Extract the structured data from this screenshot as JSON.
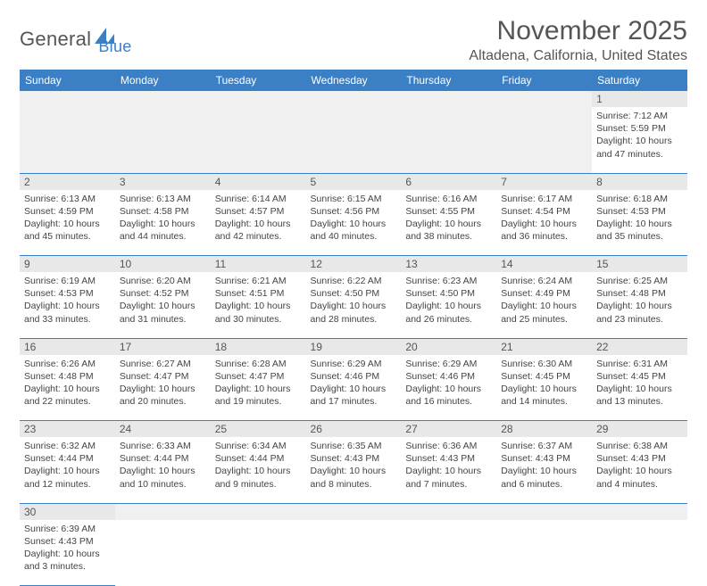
{
  "logo": {
    "word1": "General",
    "word2": "Blue"
  },
  "title": "November 2025",
  "location": "Altadena, California, United States",
  "header_bg": "#3b7fc4",
  "daynames": [
    "Sunday",
    "Monday",
    "Tuesday",
    "Wednesday",
    "Thursday",
    "Friday",
    "Saturday"
  ],
  "weeks": [
    {
      "nums": [
        "",
        "",
        "",
        "",
        "",
        "",
        "1"
      ],
      "cells": [
        null,
        null,
        null,
        null,
        null,
        null,
        {
          "sunrise": "Sunrise: 7:12 AM",
          "sunset": "Sunset: 5:59 PM",
          "day1": "Daylight: 10 hours",
          "day2": "and 47 minutes."
        }
      ]
    },
    {
      "nums": [
        "2",
        "3",
        "4",
        "5",
        "6",
        "7",
        "8"
      ],
      "cells": [
        {
          "sunrise": "Sunrise: 6:13 AM",
          "sunset": "Sunset: 4:59 PM",
          "day1": "Daylight: 10 hours",
          "day2": "and 45 minutes."
        },
        {
          "sunrise": "Sunrise: 6:13 AM",
          "sunset": "Sunset: 4:58 PM",
          "day1": "Daylight: 10 hours",
          "day2": "and 44 minutes."
        },
        {
          "sunrise": "Sunrise: 6:14 AM",
          "sunset": "Sunset: 4:57 PM",
          "day1": "Daylight: 10 hours",
          "day2": "and 42 minutes."
        },
        {
          "sunrise": "Sunrise: 6:15 AM",
          "sunset": "Sunset: 4:56 PM",
          "day1": "Daylight: 10 hours",
          "day2": "and 40 minutes."
        },
        {
          "sunrise": "Sunrise: 6:16 AM",
          "sunset": "Sunset: 4:55 PM",
          "day1": "Daylight: 10 hours",
          "day2": "and 38 minutes."
        },
        {
          "sunrise": "Sunrise: 6:17 AM",
          "sunset": "Sunset: 4:54 PM",
          "day1": "Daylight: 10 hours",
          "day2": "and 36 minutes."
        },
        {
          "sunrise": "Sunrise: 6:18 AM",
          "sunset": "Sunset: 4:53 PM",
          "day1": "Daylight: 10 hours",
          "day2": "and 35 minutes."
        }
      ]
    },
    {
      "nums": [
        "9",
        "10",
        "11",
        "12",
        "13",
        "14",
        "15"
      ],
      "cells": [
        {
          "sunrise": "Sunrise: 6:19 AM",
          "sunset": "Sunset: 4:53 PM",
          "day1": "Daylight: 10 hours",
          "day2": "and 33 minutes."
        },
        {
          "sunrise": "Sunrise: 6:20 AM",
          "sunset": "Sunset: 4:52 PM",
          "day1": "Daylight: 10 hours",
          "day2": "and 31 minutes."
        },
        {
          "sunrise": "Sunrise: 6:21 AM",
          "sunset": "Sunset: 4:51 PM",
          "day1": "Daylight: 10 hours",
          "day2": "and 30 minutes."
        },
        {
          "sunrise": "Sunrise: 6:22 AM",
          "sunset": "Sunset: 4:50 PM",
          "day1": "Daylight: 10 hours",
          "day2": "and 28 minutes."
        },
        {
          "sunrise": "Sunrise: 6:23 AM",
          "sunset": "Sunset: 4:50 PM",
          "day1": "Daylight: 10 hours",
          "day2": "and 26 minutes."
        },
        {
          "sunrise": "Sunrise: 6:24 AM",
          "sunset": "Sunset: 4:49 PM",
          "day1": "Daylight: 10 hours",
          "day2": "and 25 minutes."
        },
        {
          "sunrise": "Sunrise: 6:25 AM",
          "sunset": "Sunset: 4:48 PM",
          "day1": "Daylight: 10 hours",
          "day2": "and 23 minutes."
        }
      ]
    },
    {
      "nums": [
        "16",
        "17",
        "18",
        "19",
        "20",
        "21",
        "22"
      ],
      "cells": [
        {
          "sunrise": "Sunrise: 6:26 AM",
          "sunset": "Sunset: 4:48 PM",
          "day1": "Daylight: 10 hours",
          "day2": "and 22 minutes."
        },
        {
          "sunrise": "Sunrise: 6:27 AM",
          "sunset": "Sunset: 4:47 PM",
          "day1": "Daylight: 10 hours",
          "day2": "and 20 minutes."
        },
        {
          "sunrise": "Sunrise: 6:28 AM",
          "sunset": "Sunset: 4:47 PM",
          "day1": "Daylight: 10 hours",
          "day2": "and 19 minutes."
        },
        {
          "sunrise": "Sunrise: 6:29 AM",
          "sunset": "Sunset: 4:46 PM",
          "day1": "Daylight: 10 hours",
          "day2": "and 17 minutes."
        },
        {
          "sunrise": "Sunrise: 6:29 AM",
          "sunset": "Sunset: 4:46 PM",
          "day1": "Daylight: 10 hours",
          "day2": "and 16 minutes."
        },
        {
          "sunrise": "Sunrise: 6:30 AM",
          "sunset": "Sunset: 4:45 PM",
          "day1": "Daylight: 10 hours",
          "day2": "and 14 minutes."
        },
        {
          "sunrise": "Sunrise: 6:31 AM",
          "sunset": "Sunset: 4:45 PM",
          "day1": "Daylight: 10 hours",
          "day2": "and 13 minutes."
        }
      ]
    },
    {
      "nums": [
        "23",
        "24",
        "25",
        "26",
        "27",
        "28",
        "29"
      ],
      "cells": [
        {
          "sunrise": "Sunrise: 6:32 AM",
          "sunset": "Sunset: 4:44 PM",
          "day1": "Daylight: 10 hours",
          "day2": "and 12 minutes."
        },
        {
          "sunrise": "Sunrise: 6:33 AM",
          "sunset": "Sunset: 4:44 PM",
          "day1": "Daylight: 10 hours",
          "day2": "and 10 minutes."
        },
        {
          "sunrise": "Sunrise: 6:34 AM",
          "sunset": "Sunset: 4:44 PM",
          "day1": "Daylight: 10 hours",
          "day2": "and 9 minutes."
        },
        {
          "sunrise": "Sunrise: 6:35 AM",
          "sunset": "Sunset: 4:43 PM",
          "day1": "Daylight: 10 hours",
          "day2": "and 8 minutes."
        },
        {
          "sunrise": "Sunrise: 6:36 AM",
          "sunset": "Sunset: 4:43 PM",
          "day1": "Daylight: 10 hours",
          "day2": "and 7 minutes."
        },
        {
          "sunrise": "Sunrise: 6:37 AM",
          "sunset": "Sunset: 4:43 PM",
          "day1": "Daylight: 10 hours",
          "day2": "and 6 minutes."
        },
        {
          "sunrise": "Sunrise: 6:38 AM",
          "sunset": "Sunset: 4:43 PM",
          "day1": "Daylight: 10 hours",
          "day2": "and 4 minutes."
        }
      ]
    },
    {
      "nums": [
        "30",
        "",
        "",
        "",
        "",
        "",
        ""
      ],
      "cells": [
        {
          "sunrise": "Sunrise: 6:39 AM",
          "sunset": "Sunset: 4:43 PM",
          "day1": "Daylight: 10 hours",
          "day2": "and 3 minutes."
        },
        null,
        null,
        null,
        null,
        null,
        null
      ]
    }
  ]
}
